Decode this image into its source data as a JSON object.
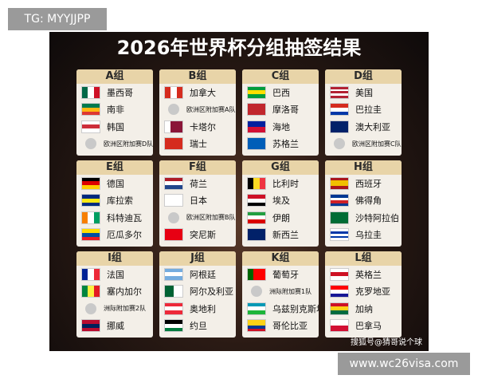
{
  "watermark": "TG: MYYJJPP",
  "title": "2026年世界杯分组抽签结果",
  "groups": [
    {
      "name": "A组",
      "teams": [
        "墨西哥",
        "南非",
        "韩国",
        "欧洲区附加赛D队"
      ]
    },
    {
      "name": "B组",
      "teams": [
        "加拿大",
        "欧洲区附加赛A队",
        "卡塔尔",
        "瑞士"
      ]
    },
    {
      "name": "C组",
      "teams": [
        "巴西",
        "摩洛哥",
        "海地",
        "苏格兰"
      ]
    },
    {
      "name": "D组",
      "teams": [
        "美国",
        "巴拉圭",
        "澳大利亚",
        "欧洲区附加赛C队"
      ]
    },
    {
      "name": "E组",
      "teams": [
        "德国",
        "库拉索",
        "科特迪瓦",
        "厄瓜多尔"
      ]
    },
    {
      "name": "F组",
      "teams": [
        "荷兰",
        "日本",
        "欧洲区附加赛B队",
        "突尼斯"
      ]
    },
    {
      "name": "G组",
      "teams": [
        "比利时",
        "埃及",
        "伊朗",
        "新西兰"
      ]
    },
    {
      "name": "H组",
      "teams": [
        "西班牙",
        "佛得角",
        "沙特阿拉伯",
        "乌拉圭"
      ]
    },
    {
      "name": "I组",
      "teams": [
        "法国",
        "塞内加尔",
        "洲际附加赛2队",
        "挪威"
      ]
    },
    {
      "name": "J组",
      "teams": [
        "阿根廷",
        "阿尔及利亚",
        "奥地利",
        "约旦"
      ]
    },
    {
      "name": "K组",
      "teams": [
        "葡萄牙",
        "洲际附加赛1队",
        "乌兹别克斯坦",
        "哥伦比亚"
      ]
    },
    {
      "name": "L组",
      "teams": [
        "英格兰",
        "克罗地亚",
        "加纳",
        "巴拿马"
      ]
    }
  ],
  "source": "搜狐号@猜哥说个球",
  "url": "www.wc26visa.com"
}
